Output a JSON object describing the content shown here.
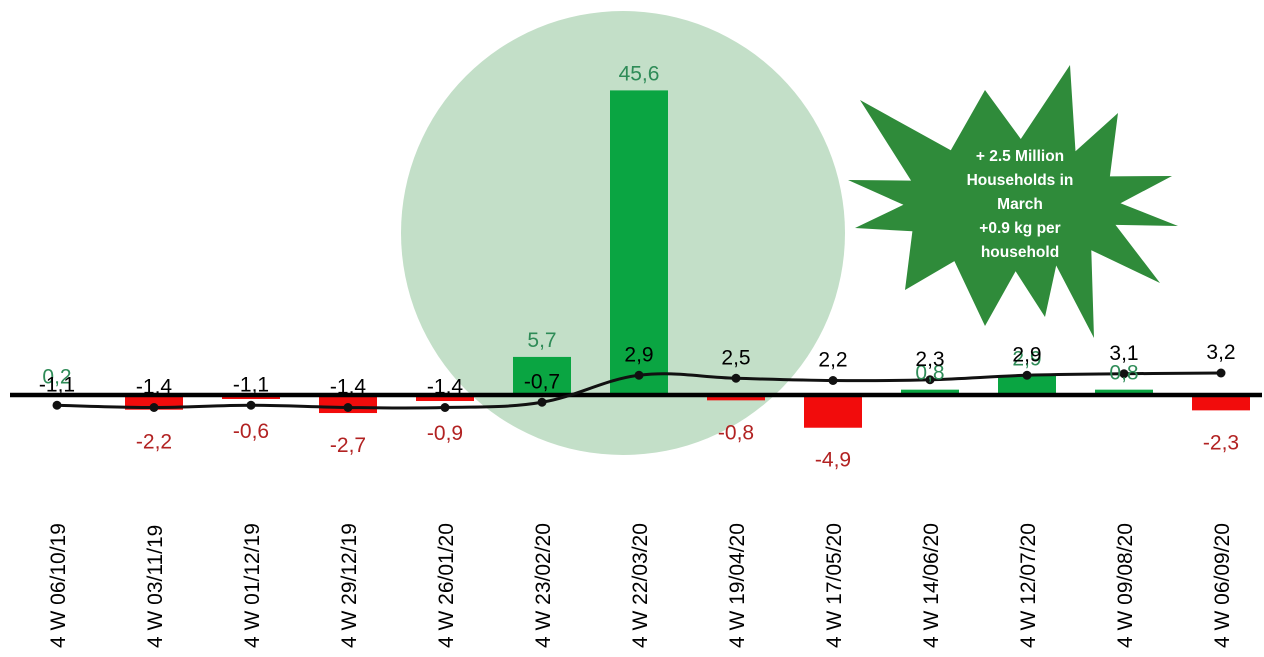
{
  "chart_data": {
    "type": "bar",
    "categories": [
      "4 W 06/10/19",
      "4 W 03/11/19",
      "4 W 01/12/19",
      "4 W 29/12/19",
      "4 W 26/01/20",
      "4 W 23/02/20",
      "4 W 22/03/20",
      "4 W 19/04/20",
      "4 W 17/05/20",
      "4 W 14/06/20",
      "4 W 12/07/20",
      "4 W 09/08/20",
      "4 W 06/09/20"
    ],
    "series": [
      {
        "type": "bar",
        "values": [
          0.2,
          -2.2,
          -0.6,
          -2.7,
          -0.9,
          5.7,
          45.6,
          -0.8,
          -4.9,
          0.8,
          2.9,
          0.8,
          -2.3
        ],
        "labels": [
          "0,2",
          "-2,2",
          "-0,6",
          "-2,7",
          "-0,9",
          "5,7",
          "45,6",
          "-0,8",
          "-4,9",
          "0,8",
          "2,9",
          "0,8",
          "-2,3"
        ]
      },
      {
        "type": "line",
        "values": [
          -1.1,
          -1.4,
          -1.1,
          -1.4,
          -1.4,
          -0.7,
          2.9,
          2.5,
          2.2,
          2.3,
          2.9,
          3.1,
          3.2
        ],
        "labels": [
          "-1,1",
          "-1,4",
          "-1,1",
          "-1,4",
          "-1,4",
          "-0,7",
          "2,9",
          "2,5",
          "2,2",
          "2,3",
          "2,9",
          "3,1",
          "3,2"
        ]
      }
    ],
    "annotation": {
      "lines": [
        "+ 2.5 Million",
        "Households in",
        "March",
        "+0.9   kg   per",
        "household"
      ]
    },
    "highlight_category": "4 W 22/03/20",
    "colors": {
      "positive": "#0aa542",
      "negative": "#f20c0c",
      "positive_label": "#2e8b57",
      "negative_label": "#b22222",
      "line": "#111111",
      "highlight_circle": "#c3dfc8",
      "burst": "#2f8b3a"
    }
  }
}
